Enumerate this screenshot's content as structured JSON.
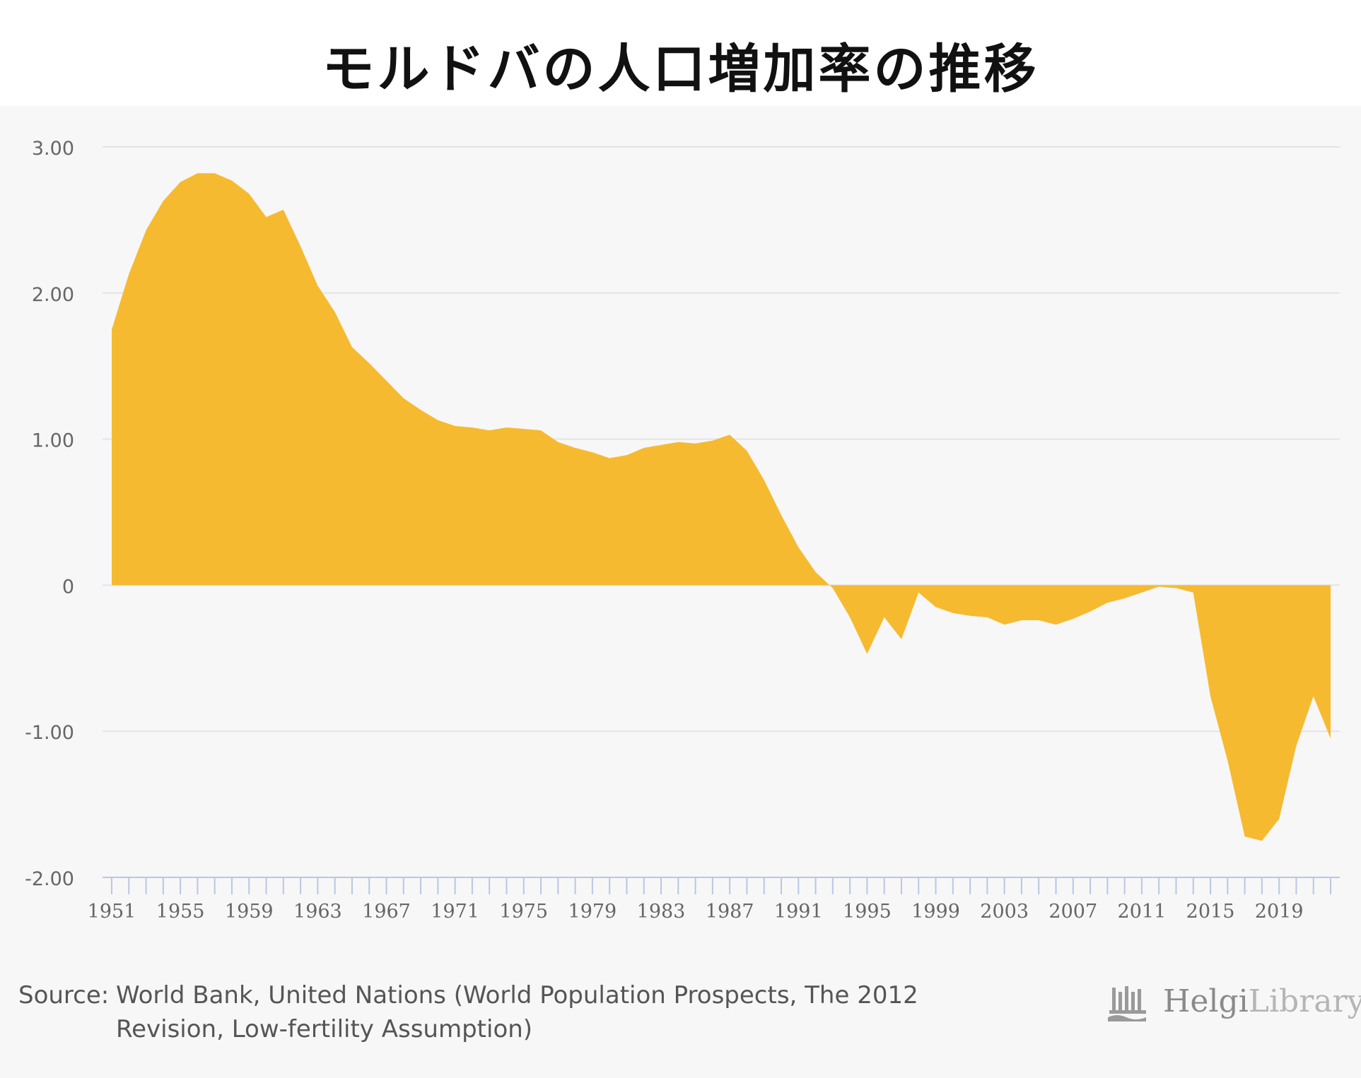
{
  "title": "モルドバの人口増加率の推移",
  "source": {
    "label": "Source:",
    "text": "World Bank, United Nations (World Population Prospects, The 2012 Revision, Low-fertility Assumption)"
  },
  "logo": {
    "main": "Helgi",
    "rest": "Library"
  },
  "colors": {
    "area": "#F6BA31",
    "grid": "#e4e4e4",
    "axis": "#b9c6e6",
    "tick_text": "#666666",
    "panel": "#f7f7f7"
  },
  "chart_data": {
    "type": "area",
    "title": "モルドバの人口増加率の推移",
    "xlabel": "",
    "ylabel": "",
    "ylim": [
      -2,
      3
    ],
    "y_ticks": [
      {
        "value": 3,
        "label": "3.00"
      },
      {
        "value": 2,
        "label": "2.00"
      },
      {
        "value": 1,
        "label": "1.00"
      },
      {
        "value": 0,
        "label": "0"
      },
      {
        "value": -1,
        "label": "-1.00"
      },
      {
        "value": -2,
        "label": "-2.00"
      }
    ],
    "x_tick_labels": [
      "1951",
      "1955",
      "1959",
      "1963",
      "1967",
      "1971",
      "1975",
      "1979",
      "1983",
      "1987",
      "1991",
      "1995",
      "1999",
      "2003",
      "2007",
      "2011",
      "2015",
      "2019"
    ],
    "grid": true,
    "legend": "none",
    "x": [
      1951,
      1952,
      1953,
      1954,
      1955,
      1956,
      1957,
      1958,
      1959,
      1960,
      1961,
      1962,
      1963,
      1964,
      1965,
      1966,
      1967,
      1968,
      1969,
      1970,
      1971,
      1972,
      1973,
      1974,
      1975,
      1976,
      1977,
      1978,
      1979,
      1980,
      1981,
      1982,
      1983,
      1984,
      1985,
      1986,
      1987,
      1988,
      1989,
      1990,
      1991,
      1992,
      1993,
      1994,
      1995,
      1996,
      1997,
      1998,
      1999,
      2000,
      2001,
      2002,
      2003,
      2004,
      2005,
      2006,
      2007,
      2008,
      2009,
      2010,
      2011,
      2012,
      2013,
      2014,
      2015,
      2016,
      2017,
      2018,
      2019,
      2020,
      2021,
      2022
    ],
    "values": [
      1.75,
      2.13,
      2.43,
      2.63,
      2.76,
      2.82,
      2.82,
      2.77,
      2.68,
      2.52,
      2.57,
      2.32,
      2.05,
      1.87,
      1.63,
      1.52,
      1.4,
      1.28,
      1.2,
      1.13,
      1.09,
      1.08,
      1.06,
      1.08,
      1.07,
      1.06,
      0.98,
      0.94,
      0.91,
      0.87,
      0.89,
      0.94,
      0.96,
      0.98,
      0.97,
      0.99,
      1.03,
      0.92,
      0.72,
      0.48,
      0.26,
      0.09,
      -0.02,
      -0.22,
      -0.47,
      -0.22,
      -0.37,
      -0.05,
      -0.15,
      -0.19,
      -0.21,
      -0.22,
      -0.27,
      -0.24,
      -0.24,
      -0.27,
      -0.23,
      -0.18,
      -0.12,
      -0.09,
      -0.05,
      -0.01,
      -0.02,
      -0.05,
      -0.76,
      -1.2,
      -1.72,
      -1.75,
      -1.6,
      -1.1,
      -0.76,
      -1.05
    ]
  }
}
